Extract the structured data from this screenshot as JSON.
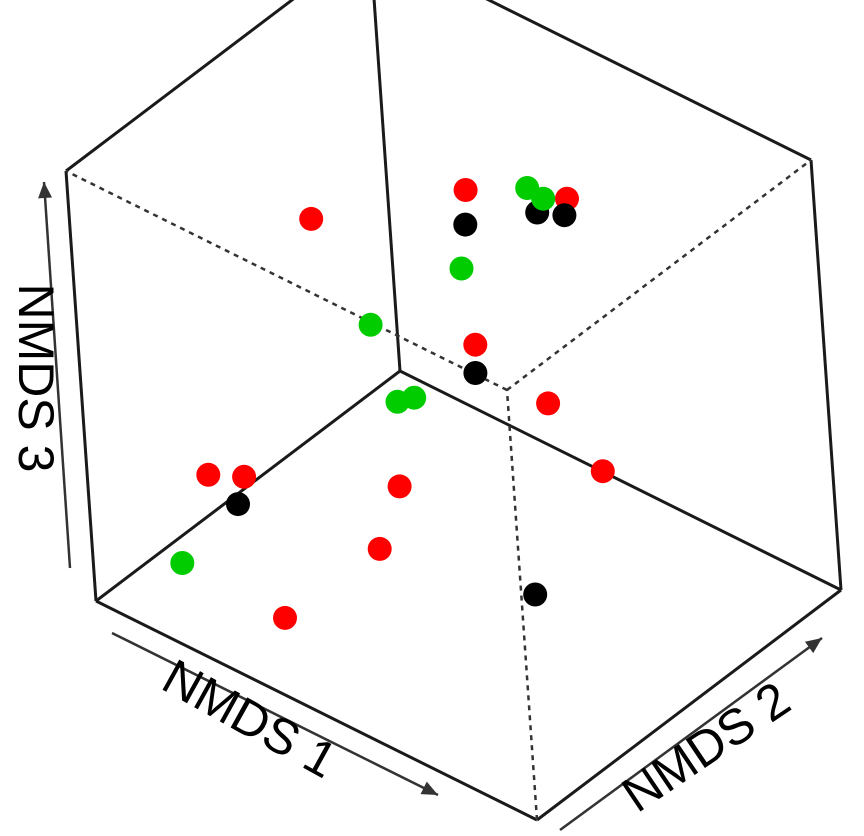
{
  "chart_data": {
    "type": "scatter",
    "subtype": "3d-scatter",
    "title": "",
    "xlabel": "NMDS 1",
    "ylabel": "NMDS 2",
    "zlabel": "NMDS 3",
    "grid": false,
    "legend": "none",
    "xlim": [
      -1,
      1
    ],
    "ylim": [
      -1,
      1
    ],
    "zlim": [
      -1,
      1
    ],
    "colors": {
      "red": "#ff0000",
      "black": "#000000",
      "green": "#00cc00"
    },
    "series": [
      {
        "color": "red",
        "points": [
          {
            "x": -0.48,
            "y": 0.15,
            "z": 1.01
          },
          {
            "x": -0.43,
            "y": -0.42,
            "z": 0.61
          },
          {
            "x": 0.45,
            "y": -0.22,
            "z": 0.64
          },
          {
            "x": -0.95,
            "y": -0.37,
            "z": 0.26
          },
          {
            "x": 0.64,
            "y": 1.01,
            "z": 0.02
          },
          {
            "x": -0.35,
            "y": -1.0,
            "z": -0.07
          },
          {
            "x": 0.19,
            "y": -0.13,
            "z": -0.52
          },
          {
            "x": 0.11,
            "y": -1.01,
            "z": -0.62
          },
          {
            "x": 1.01,
            "y": -0.23,
            "z": -0.83
          },
          {
            "x": 0.97,
            "y": -0.06,
            "z": -0.91
          },
          {
            "x": 0.33,
            "y": 1.02,
            "z": -0.82
          }
        ]
      },
      {
        "color": "black",
        "points": [
          {
            "x": -0.5,
            "y": 0.1,
            "z": 0.97
          },
          {
            "x": -0.17,
            "y": 0.37,
            "z": 0.67
          },
          {
            "x": 0.0,
            "y": 0.14,
            "z": -0.04
          },
          {
            "x": 0.54,
            "y": 0.86,
            "z": -0.01
          },
          {
            "x": -0.9,
            "y": -0.78,
            "z": -0.12
          },
          {
            "x": 0.79,
            "y": -0.35,
            "z": -0.79
          }
        ]
      },
      {
        "color": "green",
        "points": [
          {
            "x": -0.03,
            "y": 0.6,
            "z": 0.54
          },
          {
            "x": 0.29,
            "y": 0.93,
            "z": 0.25
          },
          {
            "x": 0.15,
            "y": -0.16,
            "z": -0.09
          },
          {
            "x": 0.16,
            "y": -0.04,
            "z": -0.14
          },
          {
            "x": 0.67,
            "y": 0.99,
            "z": -0.35
          },
          {
            "x": 0.92,
            "y": 0.73,
            "z": -0.6
          },
          {
            "x": 0.77,
            "y": -0.75,
            "z": -0.84
          }
        ]
      }
    ]
  }
}
